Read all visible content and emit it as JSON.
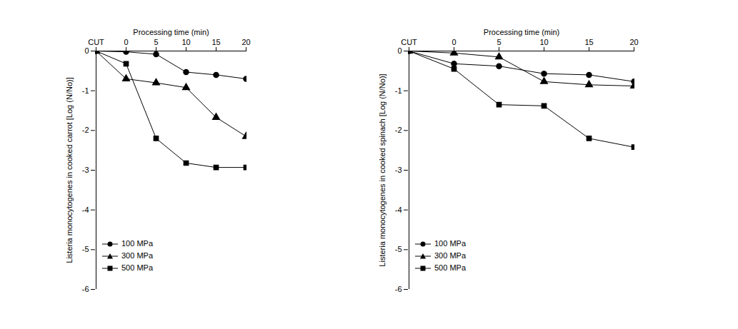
{
  "chart_data": [
    {
      "type": "line",
      "x_label": "Processing time (min)",
      "y_label": "Listeria monocytogenes in cooked carrot [Log (N/No)]",
      "categories": [
        "CUT",
        "0",
        "5",
        "10",
        "15",
        "20"
      ],
      "ylim": [
        -6,
        0
      ],
      "yticks": [
        0,
        -1,
        -2,
        -3,
        -4,
        -5,
        -6
      ],
      "legend": "lower left",
      "series": [
        {
          "name": "100 MPa",
          "color": "#000000",
          "marker": "circle",
          "values": [
            0,
            -0.02,
            -0.08,
            -0.53,
            -0.6,
            -0.7
          ]
        },
        {
          "name": "300 MPa",
          "color": "#000000",
          "marker": "triangle",
          "values": [
            0,
            -0.7,
            -0.8,
            -0.92,
            -1.67,
            -2.15
          ]
        },
        {
          "name": "500 MPa",
          "color": "#000000",
          "marker": "square",
          "values": [
            0,
            -0.32,
            -2.2,
            -2.82,
            -2.93,
            -2.93
          ]
        }
      ]
    },
    {
      "type": "line",
      "x_label": "Processing time (min)",
      "y_label": "Listeria monocytogenes in cooked spinach [Log (N/No)]",
      "categories": [
        "CUT",
        "0",
        "5",
        "10",
        "15",
        "20"
      ],
      "ylim": [
        -6,
        0
      ],
      "yticks": [
        0,
        -1,
        -2,
        -3,
        -4,
        -5,
        -6
      ],
      "legend": "lower left",
      "series": [
        {
          "name": "100 MPa",
          "color": "#000000",
          "marker": "circle",
          "values": [
            0,
            -0.32,
            -0.38,
            -0.57,
            -0.6,
            -0.77
          ]
        },
        {
          "name": "300 MPa",
          "color": "#000000",
          "marker": "triangle",
          "values": [
            0,
            -0.05,
            -0.15,
            -0.77,
            -0.85,
            -0.88
          ]
        },
        {
          "name": "500 MPa",
          "color": "#000000",
          "marker": "square",
          "values": [
            0,
            -0.45,
            -1.35,
            -1.38,
            -2.2,
            -2.42
          ]
        }
      ]
    }
  ]
}
